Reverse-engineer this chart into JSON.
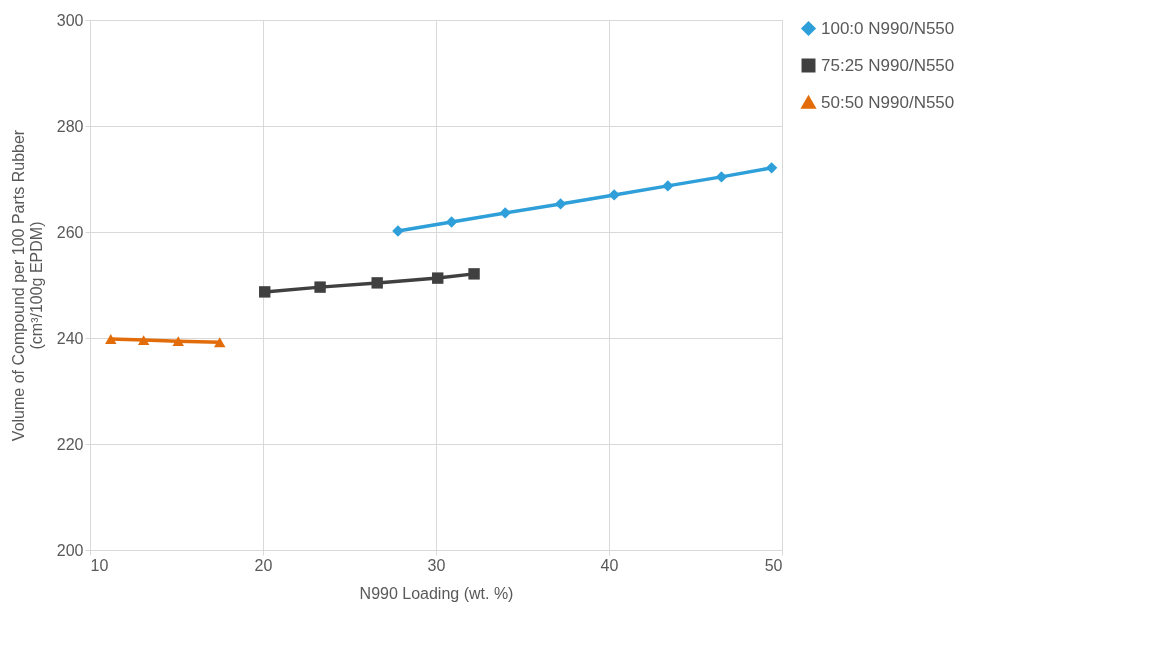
{
  "chart_data": {
    "type": "line",
    "xlabel": "N990 Loading (wt. %)",
    "ylabel": "Volume of Compound per 100 Parts Rubber (cm³/100g EPDM)",
    "xlim": [
      10,
      50
    ],
    "xticks": [
      10,
      20,
      30,
      40,
      50
    ],
    "ylim": [
      200,
      300
    ],
    "yticks": [
      200,
      220,
      240,
      260,
      280,
      300
    ],
    "grid": true,
    "legend": "right",
    "series": [
      {
        "name": "100:0 N990/N550",
        "color": "#2e9fd9",
        "marker": "diamond",
        "x": [
          27.8,
          30.9,
          34.0,
          37.2,
          40.3,
          43.4,
          46.5,
          49.4
        ],
        "values": [
          260.2,
          261.9,
          263.6,
          265.3,
          267.0,
          268.7,
          270.4,
          272.1
        ]
      },
      {
        "name": "75:25 N990/N550",
        "color": "#404040",
        "marker": "square",
        "x": [
          20.1,
          23.3,
          26.6,
          30.1,
          32.2
        ],
        "values": [
          248.7,
          249.6,
          250.4,
          251.3,
          252.1
        ]
      },
      {
        "name": "50:50 N990/N550",
        "color": "#e36c0a",
        "marker": "triangle",
        "x": [
          11.2,
          13.1,
          15.1,
          17.5
        ],
        "values": [
          239.8,
          239.6,
          239.4,
          239.2
        ]
      }
    ]
  }
}
